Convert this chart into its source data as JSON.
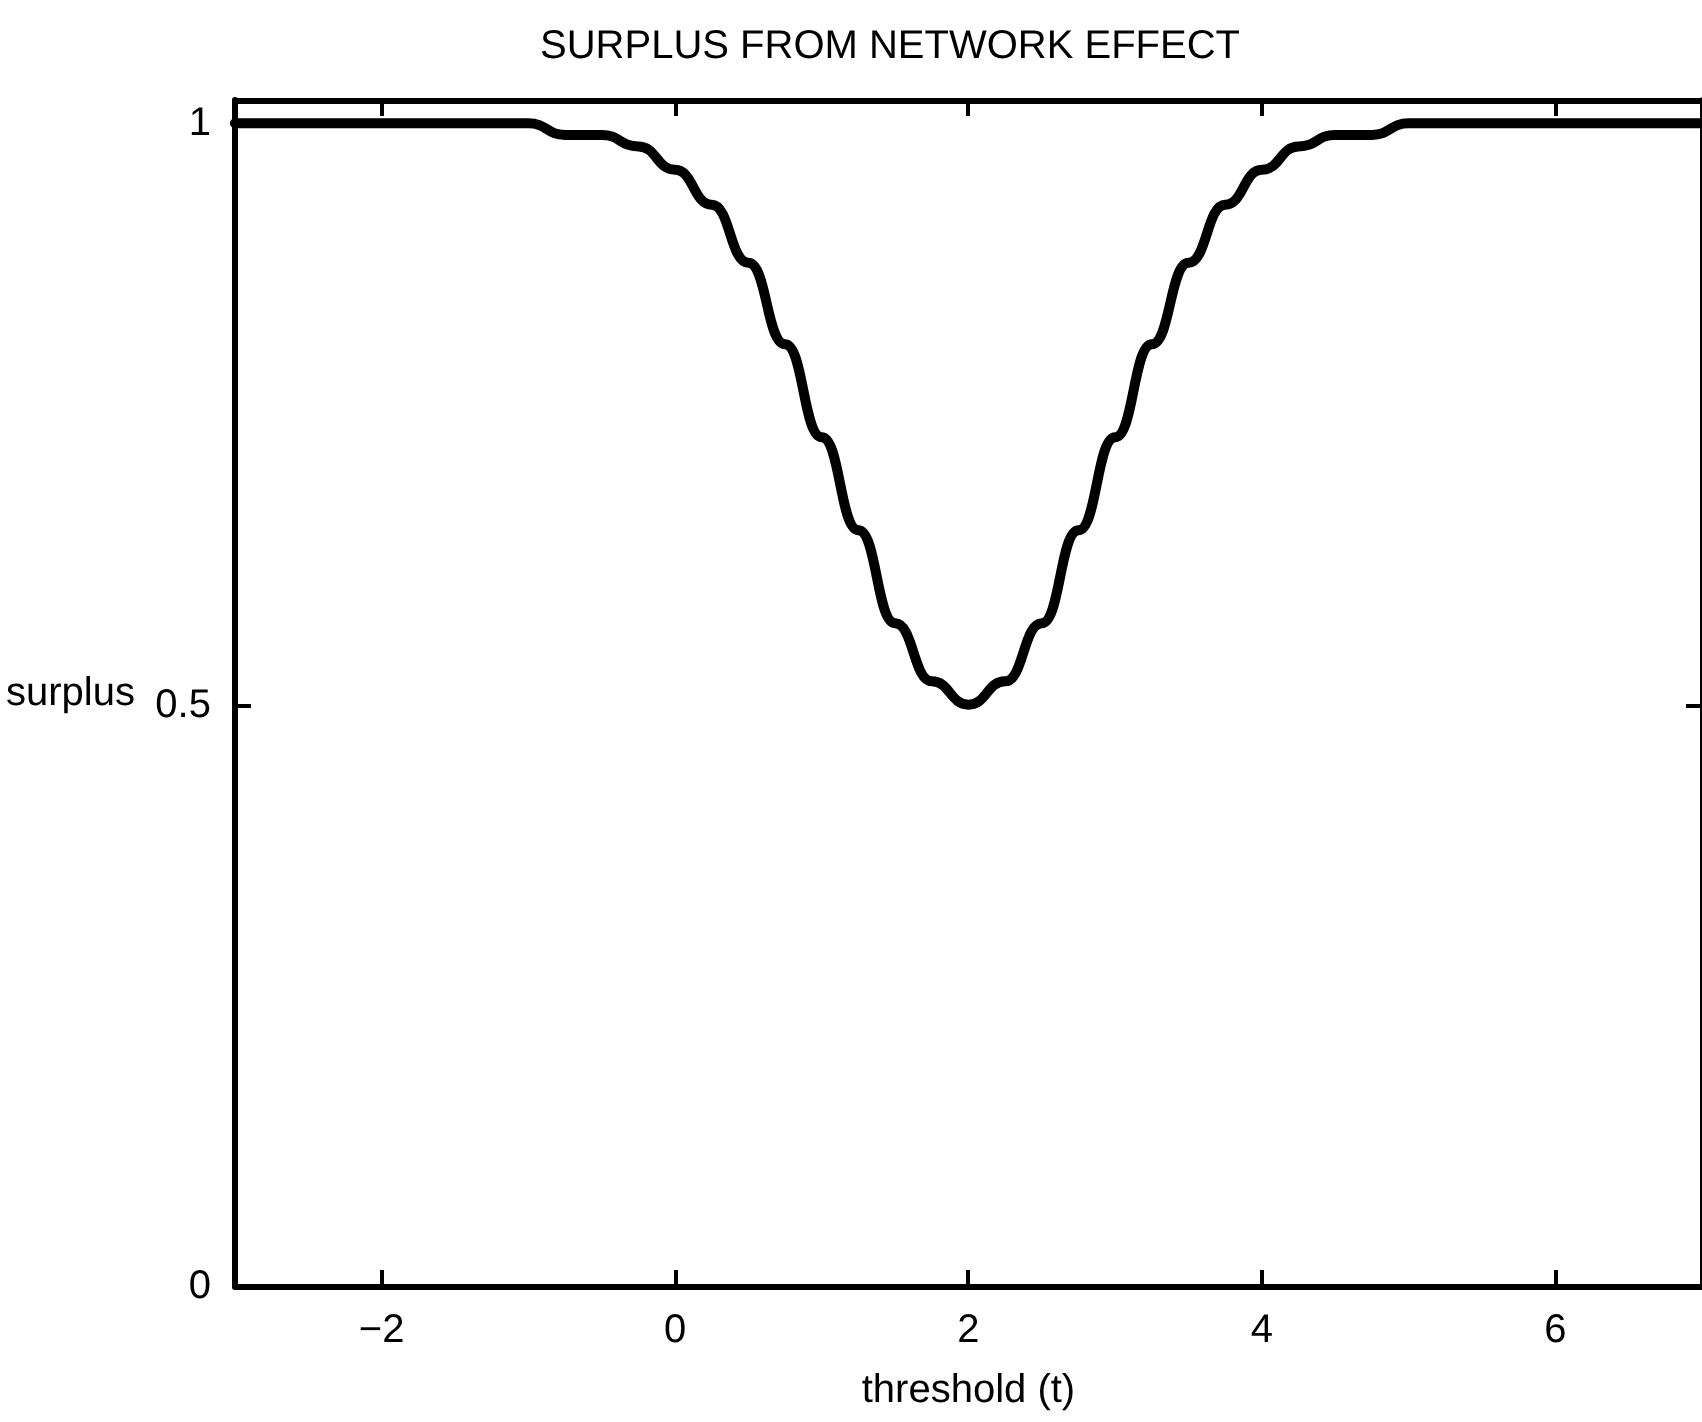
{
  "chart_data": {
    "type": "line",
    "title": "SURPLUS FROM NETWORK EFFECT",
    "xlabel": "threshold (t)",
    "ylabel": "surplus",
    "x": [
      -3,
      -2.75,
      -2.5,
      -2.25,
      -2,
      -1.75,
      -1.5,
      -1.25,
      -1,
      -0.75,
      -0.5,
      -0.25,
      0,
      0.25,
      0.5,
      0.75,
      1,
      1.25,
      1.5,
      1.75,
      2,
      2.25,
      2.5,
      2.75,
      3,
      3.25,
      3.5,
      3.75,
      4,
      4.25,
      4.5,
      4.75,
      5,
      5.25,
      5.5,
      5.75,
      6,
      6.25,
      6.5,
      6.75,
      7
    ],
    "series": [
      {
        "color": "#000000",
        "values": [
          1,
          1,
          1,
          1,
          1,
          1,
          1,
          1,
          1,
          0.99,
          0.99,
          0.98,
          0.96,
          0.93,
          0.88,
          0.81,
          0.73,
          0.65,
          0.57,
          0.52,
          0.5,
          0.52,
          0.57,
          0.65,
          0.73,
          0.81,
          0.88,
          0.93,
          0.96,
          0.98,
          0.99,
          0.99,
          1,
          1,
          1,
          1,
          1,
          1,
          1,
          1,
          1
        ]
      }
    ],
    "xlim": [
      -3,
      7
    ],
    "xticks": [
      {
        "value": -2,
        "label": "−2"
      },
      0,
      2,
      4,
      6
    ],
    "ylim": [
      0,
      1.02
    ],
    "yticks": [
      0,
      0.5,
      1
    ],
    "grid": false,
    "marker": "none",
    "line_style": "solid"
  }
}
